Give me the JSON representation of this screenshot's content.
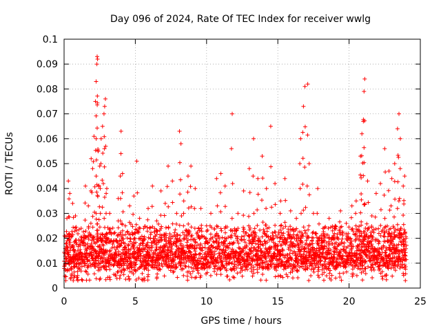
{
  "chart_data": {
    "type": "scatter",
    "title": "Day 096 of 2024, Rate Of TEC Index for receiver wwlg",
    "xlabel": "GPS time / hours",
    "ylabel": "ROTI / TECUs",
    "xlim": [
      0,
      25
    ],
    "ylim": [
      0,
      0.1
    ],
    "x_ticks": [
      0,
      5,
      10,
      15,
      20,
      25
    ],
    "x_tick_labels": [
      "0",
      "5",
      "10",
      "15",
      "20",
      "25"
    ],
    "y_ticks": [
      0,
      0.01,
      0.02,
      0.03,
      0.04,
      0.05,
      0.06,
      0.07,
      0.08,
      0.09,
      0.1
    ],
    "y_tick_labels": [
      "0",
      "0.01",
      "0.02",
      "0.03",
      "0.04",
      "0.05",
      "0.06",
      "0.07",
      "0.08",
      "0.09",
      "0.1"
    ],
    "grid": true,
    "marker": "+",
    "marker_color": "#ff0000",
    "series": [
      {
        "name": "ROTI",
        "color": "#ff0000",
        "points": [
          [
            0.1,
            0.012
          ],
          [
            0.2,
            0.028
          ],
          [
            0.3,
            0.043
          ],
          [
            0.4,
            0.038
          ],
          [
            0.5,
            0.021
          ],
          [
            0.6,
            0.034
          ],
          [
            0.7,
            0.015
          ],
          [
            0.8,
            0.029
          ],
          [
            1.0,
            0.01
          ],
          [
            1.2,
            0.024
          ],
          [
            1.5,
            0.041
          ],
          [
            1.7,
            0.033
          ],
          [
            1.9,
            0.052
          ],
          [
            2.0,
            0.048
          ],
          [
            2.1,
            0.061
          ],
          [
            2.2,
            0.075
          ],
          [
            2.25,
            0.083
          ],
          [
            2.3,
            0.09
          ],
          [
            2.32,
            0.093
          ],
          [
            2.35,
            0.092
          ],
          [
            2.4,
            0.055
          ],
          [
            2.5,
            0.049
          ],
          [
            2.6,
            0.06
          ],
          [
            2.7,
            0.065
          ],
          [
            2.8,
            0.07
          ],
          [
            2.85,
            0.073
          ],
          [
            2.9,
            0.076
          ],
          [
            3.0,
            0.04
          ],
          [
            3.2,
            0.03
          ],
          [
            3.5,
            0.022
          ],
          [
            3.8,
            0.036
          ],
          [
            4.0,
            0.063
          ],
          [
            4.1,
            0.046
          ],
          [
            4.3,
            0.025
          ],
          [
            4.6,
            0.033
          ],
          [
            4.9,
            0.037
          ],
          [
            5.1,
            0.051
          ],
          [
            5.3,
            0.028
          ],
          [
            5.6,
            0.02
          ],
          [
            5.9,
            0.032
          ],
          [
            6.2,
            0.041
          ],
          [
            6.5,
            0.027
          ],
          [
            6.8,
            0.039
          ],
          [
            7.1,
            0.034
          ],
          [
            7.3,
            0.049
          ],
          [
            7.6,
            0.043
          ],
          [
            7.9,
            0.03
          ],
          [
            8.1,
            0.063
          ],
          [
            8.2,
            0.058
          ],
          [
            8.4,
            0.035
          ],
          [
            8.7,
            0.045
          ],
          [
            8.9,
            0.049
          ],
          [
            9.2,
            0.04
          ],
          [
            9.6,
            0.032
          ],
          [
            10.0,
            0.025
          ],
          [
            10.3,
            0.03
          ],
          [
            10.7,
            0.044
          ],
          [
            11.0,
            0.046
          ],
          [
            11.3,
            0.041
          ],
          [
            11.8,
            0.07
          ],
          [
            12.2,
            0.03
          ],
          [
            12.6,
            0.039
          ],
          [
            13.0,
            0.048
          ],
          [
            13.3,
            0.06
          ],
          [
            13.6,
            0.044
          ],
          [
            13.9,
            0.053
          ],
          [
            14.2,
            0.04
          ],
          [
            14.5,
            0.065
          ],
          [
            14.8,
            0.042
          ],
          [
            15.2,
            0.035
          ],
          [
            15.5,
            0.044
          ],
          [
            15.9,
            0.031
          ],
          [
            16.3,
            0.028
          ],
          [
            16.6,
            0.06
          ],
          [
            16.8,
            0.073
          ],
          [
            16.9,
            0.081
          ],
          [
            17.1,
            0.082
          ],
          [
            17.2,
            0.05
          ],
          [
            17.5,
            0.03
          ],
          [
            17.8,
            0.04
          ],
          [
            18.2,
            0.022
          ],
          [
            18.6,
            0.028
          ],
          [
            19.0,
            0.024
          ],
          [
            19.4,
            0.031
          ],
          [
            19.8,
            0.026
          ],
          [
            20.2,
            0.033
          ],
          [
            20.5,
            0.035
          ],
          [
            20.8,
            0.053
          ],
          [
            20.9,
            0.062
          ],
          [
            21.0,
            0.067
          ],
          [
            21.05,
            0.079
          ],
          [
            21.1,
            0.084
          ],
          [
            21.3,
            0.043
          ],
          [
            21.6,
            0.029
          ],
          [
            21.9,
            0.038
          ],
          [
            22.2,
            0.042
          ],
          [
            22.5,
            0.056
          ],
          [
            22.8,
            0.047
          ],
          [
            23.0,
            0.044
          ],
          [
            23.2,
            0.05
          ],
          [
            23.4,
            0.064
          ],
          [
            23.5,
            0.07
          ],
          [
            23.6,
            0.06
          ],
          [
            23.8,
            0.041
          ],
          [
            23.9,
            0.045
          ],
          [
            24.0,
            0.02
          ]
        ],
        "baseline_band": [
          0.003,
          0.025
        ]
      }
    ]
  }
}
